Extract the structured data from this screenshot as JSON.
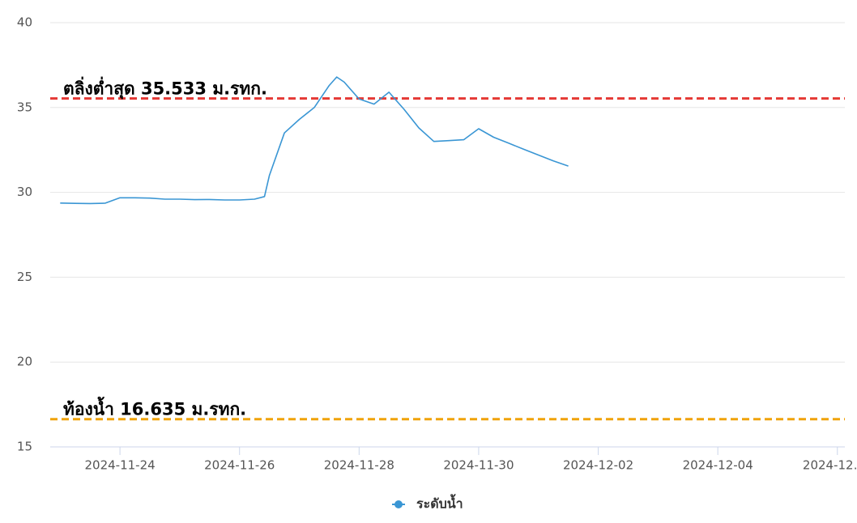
{
  "chart_data": {
    "type": "line",
    "x": [
      "2024-11-23 00:00",
      "2024-11-23 06:00",
      "2024-11-23 12:00",
      "2024-11-23 18:00",
      "2024-11-24 00:00",
      "2024-11-24 06:00",
      "2024-11-24 12:00",
      "2024-11-24 18:00",
      "2024-11-25 00:00",
      "2024-11-25 06:00",
      "2024-11-25 12:00",
      "2024-11-25 18:00",
      "2024-11-26 00:00",
      "2024-11-26 06:00",
      "2024-11-26 10:00",
      "2024-11-26 12:00",
      "2024-11-26 18:00",
      "2024-11-27 00:00",
      "2024-11-27 06:00",
      "2024-11-27 12:00",
      "2024-11-27 15:00",
      "2024-11-27 18:00",
      "2024-11-28 00:00",
      "2024-11-28 06:00",
      "2024-11-28 12:00",
      "2024-11-28 18:00",
      "2024-11-29 00:00",
      "2024-11-29 06:00",
      "2024-11-29 12:00",
      "2024-11-29 18:00",
      "2024-11-30 00:00",
      "2024-11-30 06:00",
      "2024-11-30 12:00",
      "2024-11-30 18:00",
      "2024-12-01 00:00",
      "2024-12-01 06:00",
      "2024-12-01 12:00"
    ],
    "series": [
      {
        "name": "ระดับน้ำ",
        "color": "#3a96d4",
        "values": [
          29.37,
          29.35,
          29.34,
          29.36,
          29.68,
          29.68,
          29.66,
          29.6,
          29.6,
          29.57,
          29.58,
          29.55,
          29.55,
          29.6,
          29.75,
          31.0,
          33.5,
          34.3,
          35.0,
          36.3,
          36.8,
          36.5,
          35.5,
          35.2,
          35.9,
          34.9,
          33.8,
          33.0,
          33.05,
          33.1,
          33.75,
          33.25,
          32.9,
          32.55,
          32.2,
          31.85,
          31.55
        ]
      }
    ],
    "xlim": [
      "2024-11-22 20:00",
      "2024-12-06 03:00"
    ],
    "xticks": [
      "2024-11-24",
      "2024-11-26",
      "2024-11-28",
      "2024-11-30",
      "2024-12-02",
      "2024-12-04",
      {
        "value": "2024-12-06",
        "label": "2024-12…"
      }
    ],
    "ylim": [
      15,
      40
    ],
    "yticks": [
      15,
      20,
      25,
      30,
      35,
      40
    ],
    "grid": true,
    "plot_lines": [
      {
        "label": "ตลิ่งต่ำสุด 35.533 ม.รทก.",
        "value": 35.533,
        "color": "#e53935"
      },
      {
        "label": "ท้องน้ำ 16.635 ม.รทก.",
        "value": 16.635,
        "color": "#f0a30a"
      }
    ],
    "legend": "bottom"
  }
}
